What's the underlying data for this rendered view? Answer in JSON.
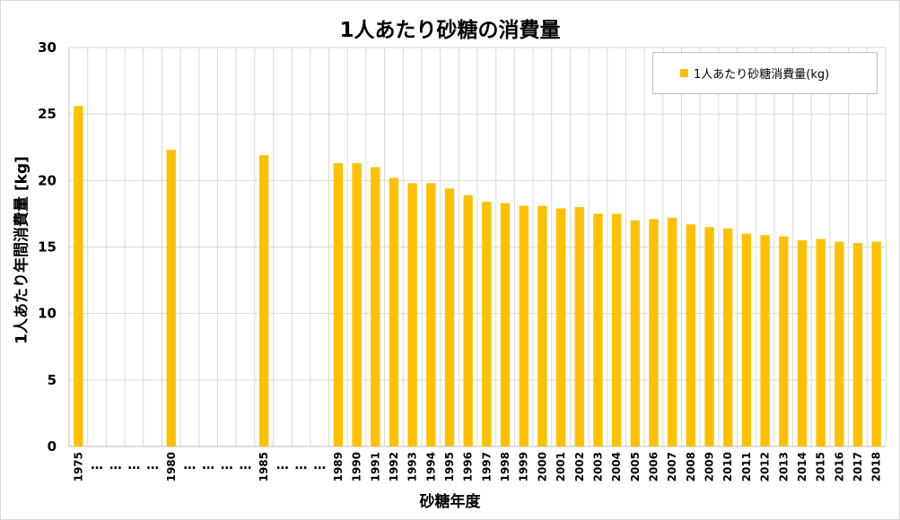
{
  "chart_data": {
    "type": "bar",
    "title": "1人あたり砂糖の消費量",
    "xlabel": "砂糖年度",
    "ylabel": "1人あたり年間消費量 [kg]",
    "ylim": [
      0,
      30
    ],
    "yticks": [
      0,
      5,
      10,
      15,
      20,
      25,
      30
    ],
    "grid": true,
    "legend_position": "top-right",
    "bar_color": "#FFC000",
    "grid_color": "#d9d9d9",
    "categories": [
      "1975",
      "…",
      "…",
      "…",
      "…",
      "1980",
      "…",
      "…",
      "…",
      "…",
      "1985",
      "…",
      "…",
      "…",
      "1989",
      "1990",
      "1991",
      "1992",
      "1993",
      "1994",
      "1995",
      "1996",
      "1997",
      "1998",
      "1999",
      "2000",
      "2001",
      "2002",
      "2003",
      "2004",
      "2005",
      "2006",
      "2007",
      "2008",
      "2009",
      "2010",
      "2011",
      "2012",
      "2013",
      "2014",
      "2015",
      "2016",
      "2017",
      "2018"
    ],
    "series": [
      {
        "name": "1人あたり砂糖消費量(kg)",
        "values": [
          25.6,
          null,
          null,
          null,
          null,
          22.3,
          null,
          null,
          null,
          null,
          21.9,
          null,
          null,
          null,
          21.3,
          21.3,
          21.0,
          20.2,
          19.8,
          19.8,
          19.4,
          18.9,
          18.4,
          18.3,
          18.1,
          18.1,
          17.9,
          18.0,
          17.5,
          17.5,
          17.0,
          17.1,
          17.2,
          16.7,
          16.5,
          16.4,
          16.0,
          15.9,
          15.8,
          15.5,
          15.6,
          15.4,
          15.3,
          15.4
        ]
      }
    ]
  }
}
